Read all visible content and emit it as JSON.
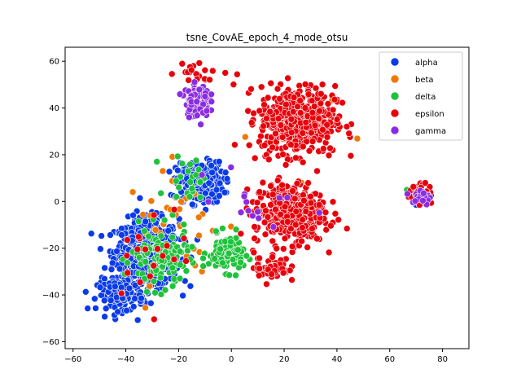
{
  "chart_data": {
    "type": "scatter",
    "title": "tsne_CovAE_epoch_4_mode_otsu",
    "xlabel": "",
    "ylabel": "",
    "xlim": [
      -63,
      90
    ],
    "ylim": [
      -63,
      66
    ],
    "xticks": [
      -60,
      -40,
      -20,
      0,
      20,
      40,
      60,
      80
    ],
    "yticks": [
      -60,
      -40,
      -20,
      0,
      20,
      40,
      60
    ],
    "grid": false,
    "legend_position": "top-right",
    "series": [
      {
        "name": "alpha",
        "color": "#0a3be8",
        "clusters": [
          {
            "center": [
              -32,
              -22
            ],
            "spread": [
              11,
              13
            ],
            "count": 700
          },
          {
            "center": [
              -12,
              8
            ],
            "spread": [
              8,
              8
            ],
            "count": 260
          },
          {
            "center": [
              -42,
              -40
            ],
            "spread": [
              8,
              6
            ],
            "count": 140
          },
          {
            "center": [
              72,
              2
            ],
            "spread": [
              4,
              3
            ],
            "count": 12
          }
        ]
      },
      {
        "name": "beta",
        "color": "#f07800",
        "clusters": [
          {
            "center": [
              -20,
              -10
            ],
            "spread": [
              18,
              22
            ],
            "count": 35
          },
          {
            "center": [
              25,
              30
            ],
            "spread": [
              15,
              18
            ],
            "count": 20
          }
        ]
      },
      {
        "name": "delta",
        "color": "#1fc23b",
        "clusters": [
          {
            "center": [
              -2,
              -22
            ],
            "spread": [
              6,
              7
            ],
            "count": 110
          },
          {
            "center": [
              -27,
              -25
            ],
            "spread": [
              10,
              12
            ],
            "count": 120
          },
          {
            "center": [
              -15,
              10
            ],
            "spread": [
              8,
              10
            ],
            "count": 25
          },
          {
            "center": [
              70,
              2
            ],
            "spread": [
              4,
              3
            ],
            "count": 10
          }
        ]
      },
      {
        "name": "epsilon",
        "color": "#e8000b",
        "clusters": [
          {
            "center": [
              25,
              35
            ],
            "spread": [
              13,
              13
            ],
            "count": 520
          },
          {
            "center": [
              22,
              -5
            ],
            "spread": [
              12,
              12
            ],
            "count": 380
          },
          {
            "center": [
              15,
              -28
            ],
            "spread": [
              6,
              6
            ],
            "count": 60
          },
          {
            "center": [
              72,
              3
            ],
            "spread": [
              4,
              4
            ],
            "count": 45
          },
          {
            "center": [
              -30,
              -20
            ],
            "spread": [
              14,
              18
            ],
            "count": 20
          },
          {
            "center": [
              -12,
              55
            ],
            "spread": [
              10,
              4
            ],
            "count": 20
          }
        ]
      },
      {
        "name": "gamma",
        "color": "#8b2be2",
        "clusters": [
          {
            "center": [
              -13,
              43
            ],
            "spread": [
              4,
              6
            ],
            "count": 130
          },
          {
            "center": [
              72,
              2
            ],
            "spread": [
              4,
              4
            ],
            "count": 20
          },
          {
            "center": [
              5,
              0
            ],
            "spread": [
              20,
              15
            ],
            "count": 15
          }
        ]
      }
    ]
  }
}
